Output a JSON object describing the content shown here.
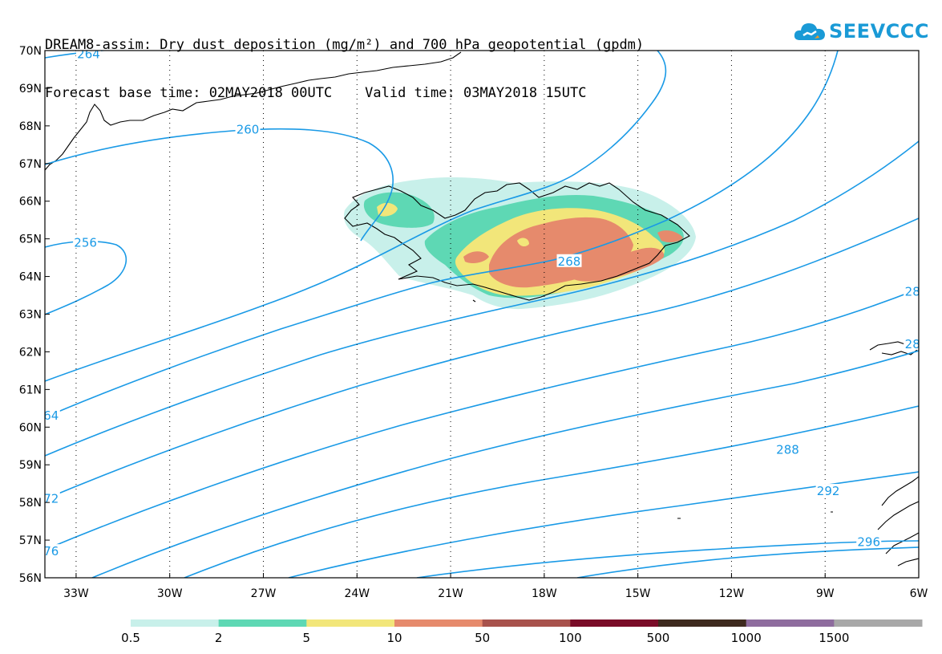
{
  "header": {
    "line1": "DREAM8-assim: Dry dust deposition (mg/m²) and 700 hPa geopotential (gpdm)",
    "line2": "Forecast base time: 02MAY2018 00UTC    Valid time: 03MAY2018 15UTC"
  },
  "logo": {
    "text": "SEEVCCC",
    "icon": "cloud-logo-icon"
  },
  "map": {
    "lon_range": [
      -34,
      -6
    ],
    "lat_range": [
      56,
      70
    ],
    "lat_ticks": [
      {
        "value": 70,
        "label": "70N"
      },
      {
        "value": 69,
        "label": "69N"
      },
      {
        "value": 68,
        "label": "68N"
      },
      {
        "value": 67,
        "label": "67N"
      },
      {
        "value": 66,
        "label": "66N"
      },
      {
        "value": 65,
        "label": "65N"
      },
      {
        "value": 64,
        "label": "64N"
      },
      {
        "value": 63,
        "label": "63N"
      },
      {
        "value": 62,
        "label": "62N"
      },
      {
        "value": 61,
        "label": "61N"
      },
      {
        "value": 60,
        "label": "60N"
      },
      {
        "value": 59,
        "label": "59N"
      },
      {
        "value": 58,
        "label": "58N"
      },
      {
        "value": 57,
        "label": "57N"
      },
      {
        "value": 56,
        "label": "56N"
      }
    ],
    "lon_ticks": [
      {
        "value": -33,
        "label": "33W"
      },
      {
        "value": -30,
        "label": "30W"
      },
      {
        "value": -27,
        "label": "27W"
      },
      {
        "value": -24,
        "label": "24W"
      },
      {
        "value": -21,
        "label": "21W"
      },
      {
        "value": -18,
        "label": "18W"
      },
      {
        "value": -15,
        "label": "15W"
      },
      {
        "value": -12,
        "label": "12W"
      },
      {
        "value": -9,
        "label": "9W"
      },
      {
        "value": -6,
        "label": "6W"
      }
    ],
    "grid": "dotted",
    "contour_color": "#1a9ae6",
    "contour_labels": [
      {
        "text": "264",
        "lon": -32.6,
        "lat": 69.9
      },
      {
        "text": "260",
        "lon": -27.5,
        "lat": 67.9
      },
      {
        "text": "256",
        "lon": -32.7,
        "lat": 64.9
      },
      {
        "text": "268",
        "lon": -17.2,
        "lat": 64.4
      },
      {
        "text": "64",
        "lon": -33.8,
        "lat": 60.3
      },
      {
        "text": "72",
        "lon": -33.8,
        "lat": 58.1
      },
      {
        "text": "76",
        "lon": -33.8,
        "lat": 56.7
      },
      {
        "text": "288",
        "lon": -10.2,
        "lat": 59.4
      },
      {
        "text": "292",
        "lon": -8.9,
        "lat": 58.3
      },
      {
        "text": "296",
        "lon": -7.6,
        "lat": 56.95
      },
      {
        "text": "28",
        "lon": -6.2,
        "lat": 63.6
      },
      {
        "text": "28",
        "lon": -6.2,
        "lat": 62.2
      }
    ]
  },
  "colorbar": {
    "bins": [
      {
        "color": "#c8f0ea",
        "label": "0.5"
      },
      {
        "color": "#5ed8b4",
        "label": "2"
      },
      {
        "color": "#f2e67a",
        "label": "5"
      },
      {
        "color": "#e68a6c",
        "label": "10"
      },
      {
        "color": "#a8524c",
        "label": "50"
      },
      {
        "color": "#7a0c28",
        "label": "100"
      },
      {
        "color": "#3e2a1e",
        "label": "500"
      },
      {
        "color": "#8e6c9e",
        "label": "1000"
      },
      {
        "color": "#a8a8a8",
        "label": "1500"
      }
    ]
  }
}
